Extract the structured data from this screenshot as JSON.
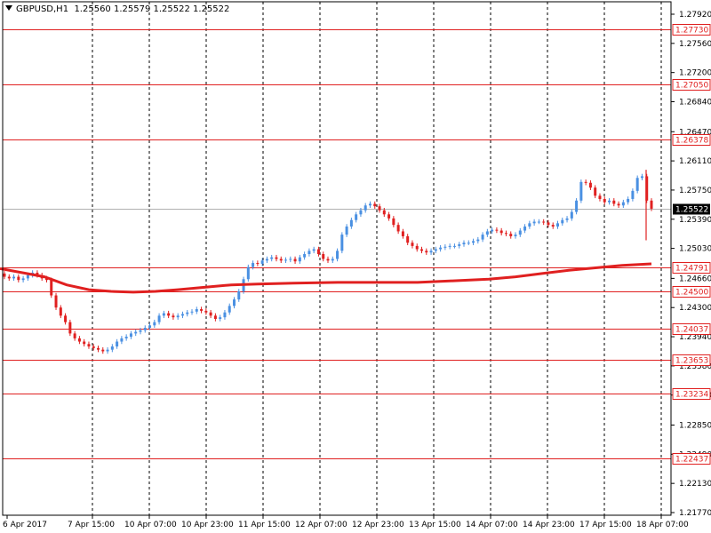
{
  "header": {
    "symbol": "GBPUSD,H1",
    "ohlc": "1.25560 1.25579 1.25522 1.25522"
  },
  "colors": {
    "bull": "#4a90e2",
    "bear": "#e02020",
    "level": "#e02020",
    "ma": "#e02020",
    "grid": "#000000",
    "price_label_bg": "#ffffff",
    "current_label_bg": "#000000"
  },
  "chart_data": {
    "type": "candlestick",
    "ylim": [
      1.217,
      1.28
    ],
    "y_ticks": [
      "1.27920",
      "1.27560",
      "1.27200",
      "1.26840",
      "1.26470",
      "1.26110",
      "1.25750",
      "1.25390",
      "1.25030",
      "1.24660",
      "1.24300",
      "1.23940",
      "1.23580",
      "1.23220",
      "1.22850",
      "1.22490",
      "1.22130",
      "1.21770"
    ],
    "x_ticks": [
      "6 Apr 2017",
      "7 Apr 15:00",
      "10 Apr 07:00",
      "10 Apr 23:00",
      "11 Apr 15:00",
      "12 Apr 07:00",
      "12 Apr 23:00",
      "13 Apr 15:00",
      "14 Apr 07:00",
      "14 Apr 23:00",
      "17 Apr 15:00",
      "18 Apr 07:00"
    ],
    "levels": [
      "1.27730",
      "1.27050",
      "1.26378",
      "1.24791",
      "1.24500",
      "1.24037",
      "1.23653",
      "1.23234",
      "1.22437"
    ],
    "current_price": "1.25522",
    "current_price_value": 1.25522,
    "ma_label": "1.24791",
    "ma_points": [
      [
        0,
        1.2478
      ],
      [
        30,
        1.2472
      ],
      [
        50,
        1.2468
      ],
      [
        75,
        1.2458
      ],
      [
        100,
        1.2452
      ],
      [
        125,
        1.245
      ],
      [
        150,
        1.2449
      ],
      [
        175,
        1.245
      ],
      [
        200,
        1.2452
      ],
      [
        230,
        1.2455
      ],
      [
        260,
        1.2458
      ],
      [
        290,
        1.2459
      ],
      [
        330,
        1.246
      ],
      [
        380,
        1.2461
      ],
      [
        420,
        1.2461
      ],
      [
        470,
        1.2461
      ],
      [
        510,
        1.2463
      ],
      [
        550,
        1.2465
      ],
      [
        580,
        1.2468
      ],
      [
        610,
        1.2472
      ],
      [
        640,
        1.2476
      ],
      [
        670,
        1.2479
      ],
      [
        700,
        1.2482
      ],
      [
        733,
        1.2484
      ]
    ],
    "closes": [
      1.2468,
      1.2466,
      1.2468,
      1.2464,
      1.2466,
      1.247,
      1.2473,
      1.247,
      1.2466,
      1.2464,
      1.2445,
      1.243,
      1.242,
      1.2412,
      1.2398,
      1.2392,
      1.2388,
      1.2385,
      1.2382,
      1.238,
      1.2378,
      1.2376,
      1.2378,
      1.2382,
      1.2388,
      1.2392,
      1.2394,
      1.2398,
      1.24,
      1.2402,
      1.2405,
      1.2408,
      1.2412,
      1.242,
      1.2423,
      1.242,
      1.2418,
      1.242,
      1.2422,
      1.2424,
      1.2425,
      1.2428,
      1.2426,
      1.2424,
      1.242,
      1.2416,
      1.2418,
      1.2424,
      1.2432,
      1.244,
      1.245,
      1.2465,
      1.248,
      1.2485,
      1.2484,
      1.2488,
      1.249,
      1.2492,
      1.249,
      1.2488,
      1.2489,
      1.249,
      1.2487,
      1.2492,
      1.2496,
      1.25,
      1.2502,
      1.2496,
      1.249,
      1.2488,
      1.249,
      1.25,
      1.252,
      1.253,
      1.2538,
      1.2545,
      1.255,
      1.2556,
      1.2558,
      1.2555,
      1.255,
      1.2545,
      1.254,
      1.2532,
      1.2524,
      1.2518,
      1.251,
      1.2506,
      1.2502,
      1.25,
      1.2498,
      1.25,
      1.2502,
      1.2504,
      1.2505,
      1.2506,
      1.2506,
      1.2508,
      1.251,
      1.251,
      1.2512,
      1.2514,
      1.252,
      1.2524,
      1.2526,
      1.2525,
      1.2522,
      1.2521,
      1.2518,
      1.252,
      1.2525,
      1.253,
      1.2534,
      1.2536,
      1.2536,
      1.2535,
      1.2532,
      1.253,
      1.2534,
      1.2538,
      1.254,
      1.2548,
      1.2562,
      1.2585,
      1.2584,
      1.2578,
      1.2568,
      1.2564,
      1.256,
      1.2562,
      1.2558,
      1.2556,
      1.256,
      1.2564,
      1.2574,
      1.259,
      1.2592,
      1.2562,
      1.2552
    ]
  }
}
